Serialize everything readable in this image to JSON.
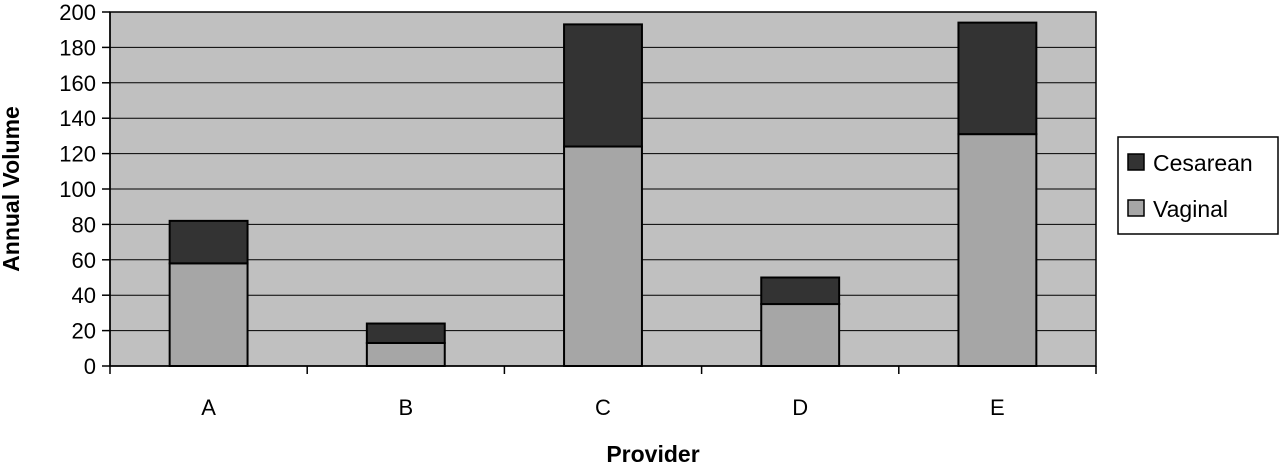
{
  "chart_data": {
    "type": "bar",
    "stacked": true,
    "categories": [
      "A",
      "B",
      "C",
      "D",
      "E"
    ],
    "series": [
      {
        "name": "Vaginal",
        "values": [
          58,
          13,
          124,
          35,
          131
        ],
        "color": "#a6a6a6"
      },
      {
        "name": "Cesarean",
        "values": [
          24,
          11,
          69,
          15,
          63
        ],
        "color": "#333333"
      }
    ],
    "xlabel": "Provider",
    "ylabel": "Annual Volume",
    "ylim": [
      0,
      200
    ],
    "yticks": [
      0,
      20,
      40,
      60,
      80,
      100,
      120,
      140,
      160,
      180,
      200
    ],
    "grid": true,
    "plot_background": "#c0c0c0",
    "legend_position": "right",
    "legend_order": [
      "Cesarean",
      "Vaginal"
    ]
  }
}
